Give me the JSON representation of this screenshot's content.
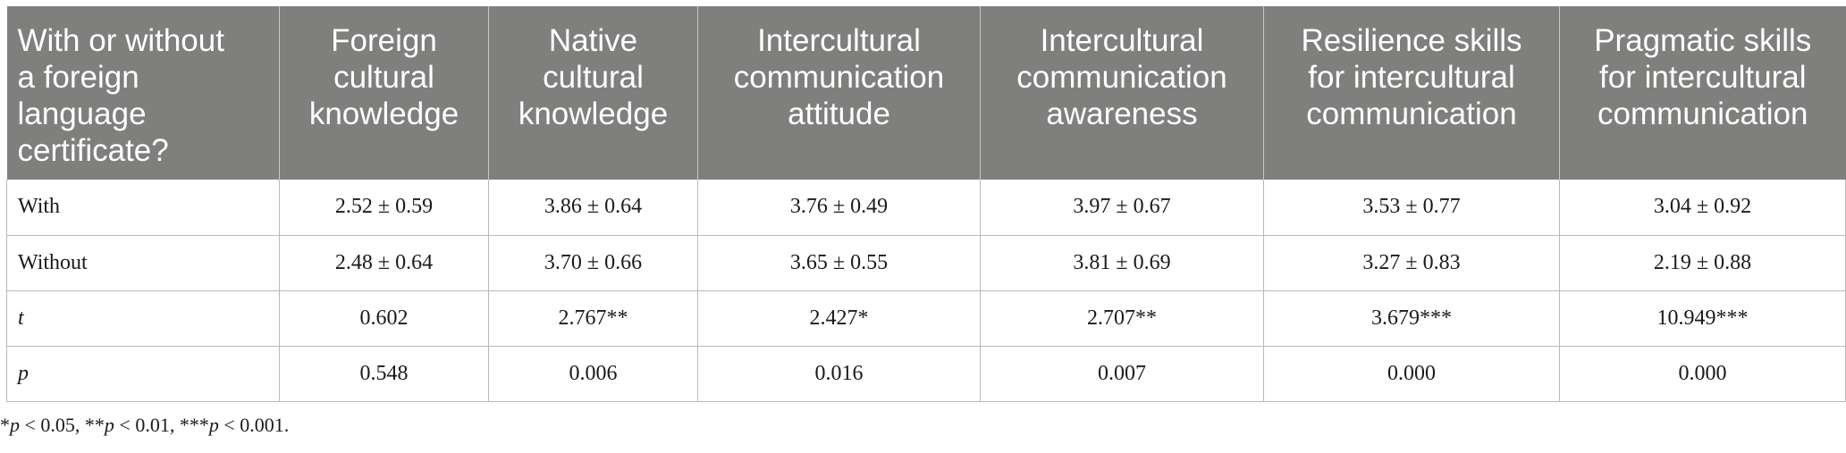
{
  "table": {
    "headers": [
      [
        "With or without",
        "a foreign",
        "language",
        "certificate?"
      ],
      [
        "Foreign",
        "cultural",
        "knowledge"
      ],
      [
        "Native",
        "cultural",
        "knowledge"
      ],
      [
        "Intercultural",
        "communication",
        "attitude"
      ],
      [
        "Intercultural",
        "communication",
        "awareness"
      ],
      [
        "Resilience skills",
        "for intercultural",
        "communication"
      ],
      [
        "Pragmatic skills",
        "for intercultural",
        "communication"
      ]
    ],
    "rows": [
      {
        "label": "With",
        "values": [
          "2.52 ± 0.59",
          "3.86 ± 0.64",
          "3.76 ± 0.49",
          "3.97 ± 0.67",
          "3.53 ± 0.77",
          "3.04 ± 0.92"
        ]
      },
      {
        "label": "Without",
        "values": [
          "2.48 ± 0.64",
          "3.70 ± 0.66",
          "3.65 ± 0.55",
          "3.81 ± 0.69",
          "3.27 ± 0.83",
          "2.19 ± 0.88"
        ]
      },
      {
        "label": "t",
        "values": [
          "0.602",
          "2.767**",
          "2.427*",
          "2.707**",
          "3.679***",
          "10.949***"
        ]
      },
      {
        "label": "p",
        "values": [
          "0.548",
          "0.006",
          "0.016",
          "0.007",
          "0.000",
          "0.000"
        ]
      }
    ]
  },
  "footnote": {
    "parts": [
      "*",
      "p",
      " < 0.05, **",
      "p",
      " < 0.01, ***",
      "p",
      " < 0.001."
    ]
  }
}
